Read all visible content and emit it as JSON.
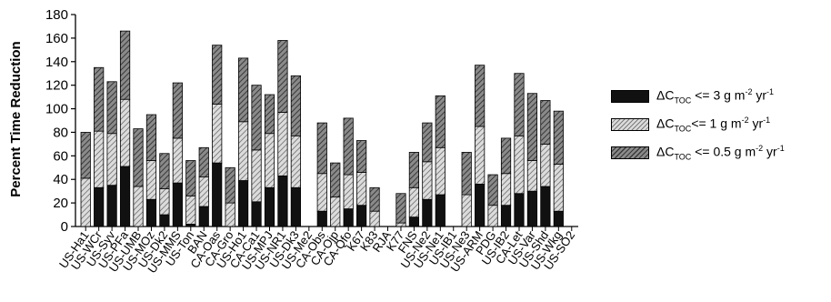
{
  "chart_data": {
    "type": "bar",
    "stacked": true,
    "title": "",
    "xlabel": "",
    "ylabel": "Percent Time Reduction",
    "ylim": [
      0,
      180
    ],
    "yticks": [
      0,
      20,
      40,
      60,
      80,
      100,
      120,
      140,
      160,
      180
    ],
    "grid": false,
    "legend": "right",
    "categories": [
      "US-Ha1",
      "US-WCr",
      "US-Syv",
      "US-PFa",
      "US-UMB",
      "US-MOz",
      "US-Dk2",
      "US-MMS",
      "US-Ton",
      "BAN",
      "CA-Oas",
      "CA-Gro",
      "US-Ho1",
      "CA-Ca1",
      "US-MPJ",
      "US-NR1",
      "US-Dk3",
      "US-Me2",
      "CA-Obs",
      "CA-Ojp",
      "CA-Qfo",
      "K67",
      "K83",
      "RJA",
      "K77",
      "FNS",
      "US-Ne2",
      "US-Ne1",
      "US-IB1",
      "US-Ne3",
      "US-ARM",
      "PDG",
      "US-IB2",
      "CA-Let",
      "US-Var",
      "US-Shd",
      "US-Wkg",
      "US-SO2"
    ],
    "series": [
      {
        "name": "ΔC_TOC <= 3 g m^-2 yr^-1",
        "label_main": "ΔC",
        "label_sub": "TOC",
        "label_mid": " <= 3 g m",
        "label_sup1": "-2",
        "label_mid2": " yr",
        "label_sup2": "-1",
        "pattern": "solid",
        "color": "#111111",
        "values": [
          0,
          33,
          35,
          51,
          0,
          23,
          10,
          37,
          2,
          17,
          54,
          0,
          39,
          21,
          33,
          43,
          33,
          0,
          13,
          0,
          15,
          18,
          0,
          0,
          0,
          8,
          23,
          27,
          0,
          0,
          36,
          0,
          18,
          28,
          30,
          34,
          13,
          0
        ]
      },
      {
        "name": "ΔC_TOC <= 1 g m^-2 yr^-1",
        "label_main": "ΔC",
        "label_sub": "TOC",
        "label_mid": "<= 1 g m",
        "label_sup1": "-2",
        "label_mid2": " yr",
        "label_sup2": "-1",
        "pattern": "light-hatch",
        "color": "#d8d8d8",
        "values": [
          41,
          48,
          44,
          57,
          34,
          33,
          22,
          38,
          24,
          25,
          50,
          20,
          50,
          44,
          46,
          54,
          44,
          0,
          32,
          25,
          29,
          28,
          13,
          0,
          3,
          25,
          32,
          40,
          0,
          27,
          49,
          18,
          27,
          49,
          26,
          36,
          40,
          0
        ]
      },
      {
        "name": "ΔC_TOC <= 0.5 g m^-2 yr^-1",
        "label_main": "ΔC",
        "label_sub": "TOC",
        "label_mid": " <= 0.5 g m",
        "label_sup1": "-2",
        "label_mid2": " yr",
        "label_sup2": "-1",
        "pattern": "dark-hatch",
        "color": "#7a7a7a",
        "values": [
          39,
          54,
          44,
          58,
          49,
          39,
          30,
          47,
          30,
          25,
          50,
          30,
          54,
          55,
          33,
          61,
          51,
          0,
          43,
          29,
          48,
          27,
          20,
          0,
          25,
          30,
          33,
          44,
          0,
          36,
          52,
          26,
          30,
          53,
          57,
          37,
          45,
          0
        ]
      }
    ]
  }
}
